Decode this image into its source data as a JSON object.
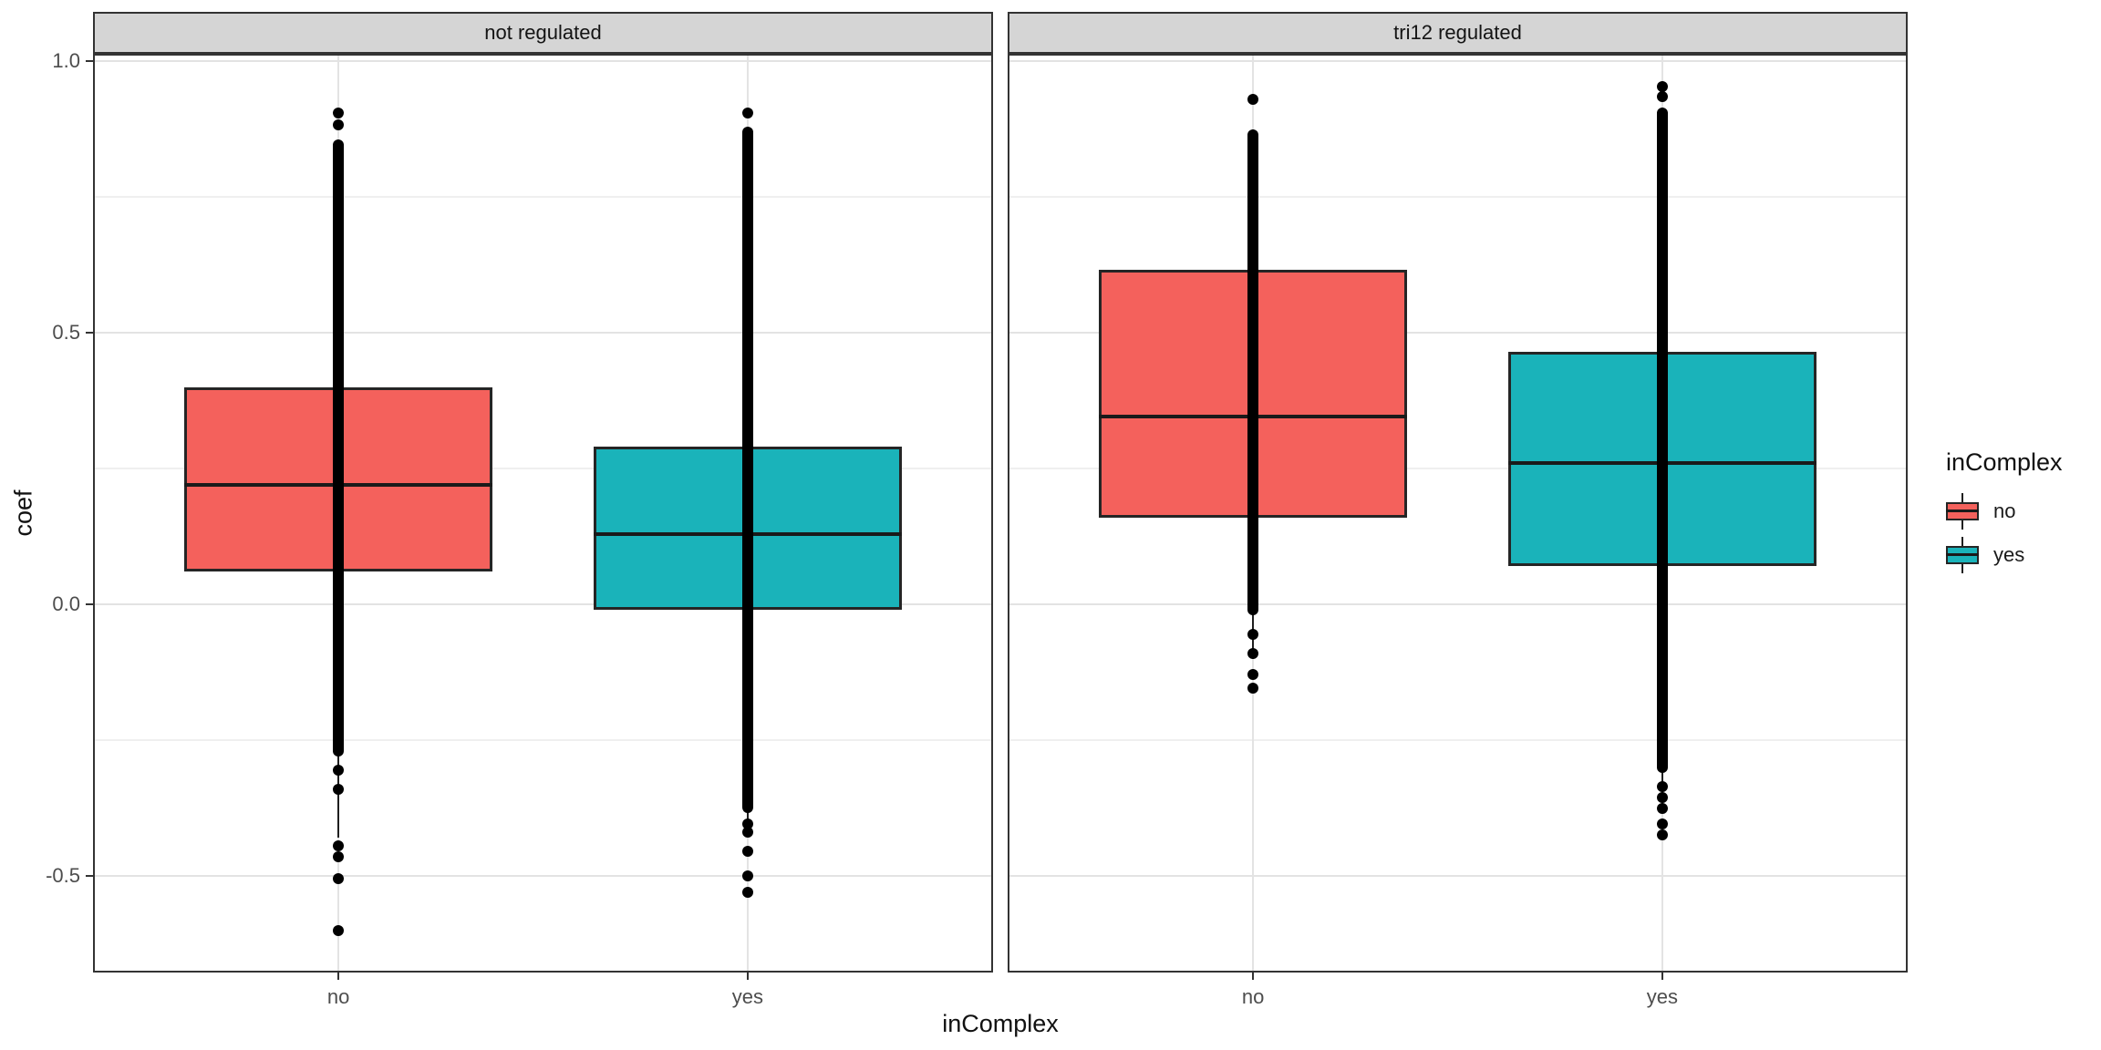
{
  "chart_data": {
    "type": "boxplot",
    "title": "",
    "xlabel": "inComplex",
    "ylabel": "coef",
    "categories": [
      "no",
      "yes"
    ],
    "y_ticks": [
      {
        "value": 1.0,
        "label": "1.0"
      },
      {
        "value": 0.5,
        "label": "0.5"
      },
      {
        "value": 0.0,
        "label": "0.0"
      },
      {
        "value": -0.5,
        "label": "-0.5"
      }
    ],
    "y_minor_ticks": [
      0.75,
      0.25,
      -0.25
    ],
    "ylim": [
      -0.68,
      1.01
    ],
    "grid": "on",
    "legend_position": "right",
    "facets": [
      {
        "label": "not regulated",
        "boxes": [
          {
            "category": "no",
            "legend": "no",
            "fill": "#F4615C",
            "q1": 0.06,
            "median": 0.22,
            "q3": 0.4,
            "whisker_low": -0.43,
            "whisker_high": 0.855,
            "dense_points": [
              -0.28,
              0.855
            ],
            "outlier_points": [
              0.905,
              0.882,
              -0.305,
              -0.34,
              -0.445,
              -0.465,
              -0.505,
              -0.6
            ]
          },
          {
            "category": "yes",
            "legend": "yes",
            "fill": "#1AB3BA",
            "q1": -0.01,
            "median": 0.13,
            "q3": 0.29,
            "whisker_low": -0.41,
            "whisker_high": 0.88,
            "dense_points": [
              -0.385,
              0.88
            ],
            "outlier_points": [
              0.905,
              -0.405,
              -0.42,
              -0.455,
              -0.5,
              -0.53
            ]
          }
        ]
      },
      {
        "label": "tri12 regulated",
        "boxes": [
          {
            "category": "no",
            "legend": "no",
            "fill": "#F4615C",
            "q1": 0.16,
            "median": 0.345,
            "q3": 0.615,
            "whisker_low": -0.1,
            "whisker_high": 0.874,
            "dense_points": [
              -0.02,
              0.874
            ],
            "outlier_points": [
              0.93,
              -0.055,
              -0.09,
              -0.13,
              -0.155
            ]
          },
          {
            "category": "yes",
            "legend": "yes",
            "fill": "#1AB3BA",
            "q1": 0.07,
            "median": 0.26,
            "q3": 0.465,
            "whisker_low": -0.37,
            "whisker_high": 0.915,
            "dense_points": [
              -0.31,
              0.915
            ],
            "outlier_points": [
              0.953,
              0.935,
              -0.335,
              -0.355,
              -0.375,
              -0.405,
              -0.425
            ]
          }
        ]
      }
    ]
  },
  "legend": {
    "title": "inComplex",
    "items": [
      {
        "label": "no",
        "fill": "#F4615C"
      },
      {
        "label": "yes",
        "fill": "#1AB3BA"
      }
    ]
  }
}
